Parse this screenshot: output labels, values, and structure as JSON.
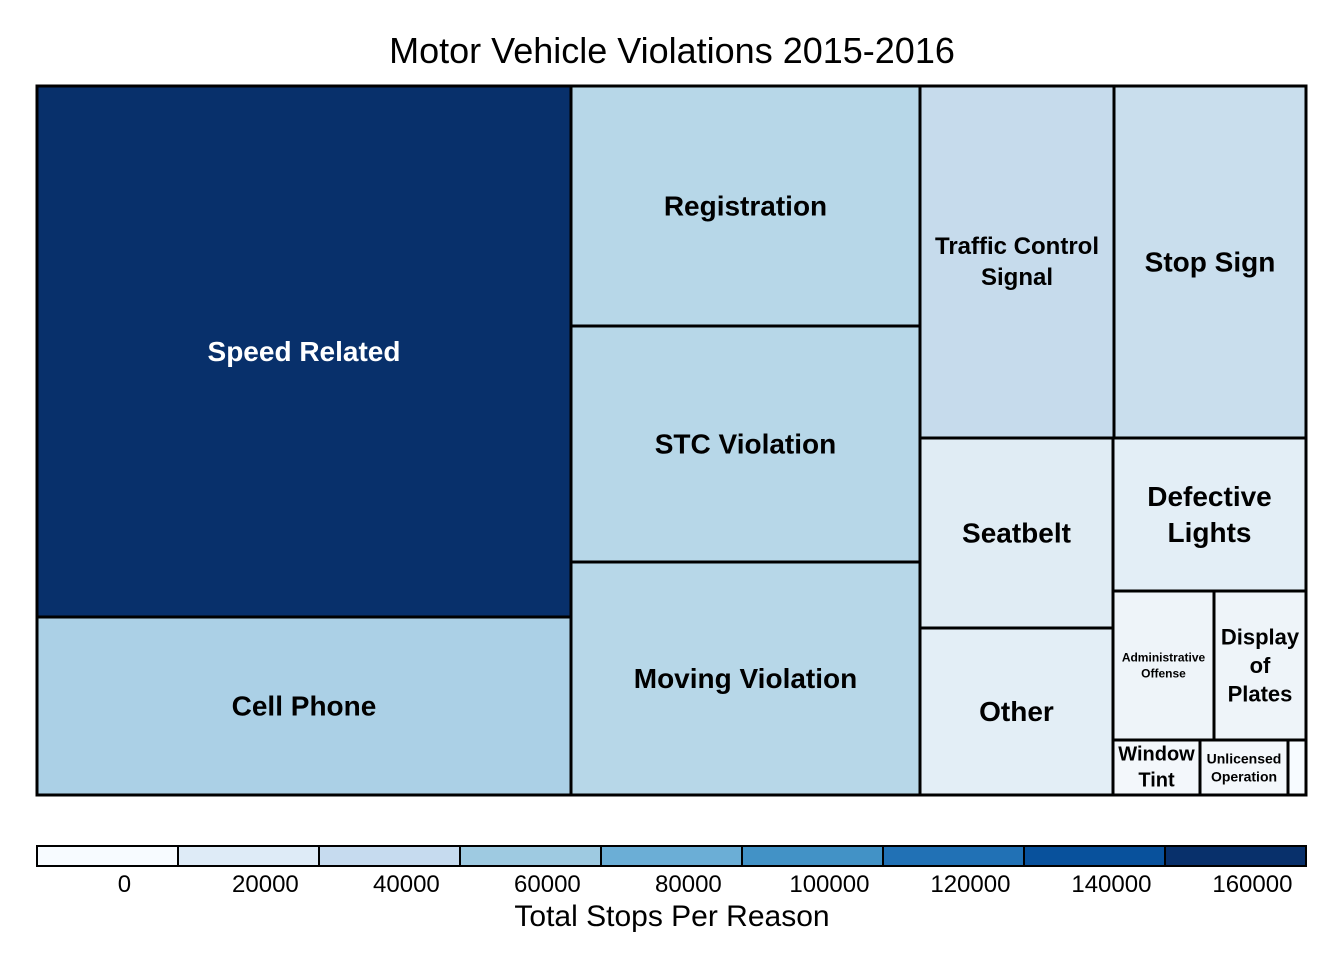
{
  "chart_data": {
    "type": "treemap",
    "title": "Motor Vehicle Violations 2015-2016",
    "series": [
      {
        "label": "Speed Related",
        "value": 160000,
        "color": "#08306b"
      },
      {
        "label": "Cell Phone",
        "value": 54000,
        "color": "#abd0e6"
      },
      {
        "label": "Registration",
        "value": 46000,
        "color": "#b7d7e8"
      },
      {
        "label": "STC Violation",
        "value": 46000,
        "color": "#b7d7e8"
      },
      {
        "label": "Moving Violation",
        "value": 45000,
        "color": "#b7d7e8"
      },
      {
        "label": "Traffic Control Signal",
        "value": 37000,
        "color": "#c6dbec"
      },
      {
        "label": "Stop Sign",
        "value": 36000,
        "color": "#c9deed"
      },
      {
        "label": "Seatbelt",
        "value": 19000,
        "color": "#e0ecf4"
      },
      {
        "label": "Other",
        "value": 18000,
        "color": "#e3eef6"
      },
      {
        "label": "Defective Lights",
        "value": 16000,
        "color": "#e3eef6"
      },
      {
        "label": "Administrative Offense",
        "value": 9000,
        "color": "#eef4f9"
      },
      {
        "label": "Display of Plates",
        "value": 8000,
        "color": "#eef4f9"
      },
      {
        "label": "Window Tint",
        "value": 2500,
        "color": "#f3f7fb"
      },
      {
        "label": "Unlicensed Operation",
        "value": 2500,
        "color": "#f3f7fb"
      },
      {
        "label": "",
        "value": 600,
        "color": "#f7fbff"
      }
    ],
    "legend": {
      "title": "Total Stops Per Reason",
      "tick_labels": [
        "0",
        "20000",
        "40000",
        "60000",
        "80000",
        "100000",
        "120000",
        "140000",
        "160000"
      ],
      "colors": [
        "#f7fbff",
        "#deebf7",
        "#c6dbef",
        "#9ecae1",
        "#6baed6",
        "#4292c6",
        "#2171b5",
        "#08519c",
        "#08306b"
      ]
    }
  }
}
